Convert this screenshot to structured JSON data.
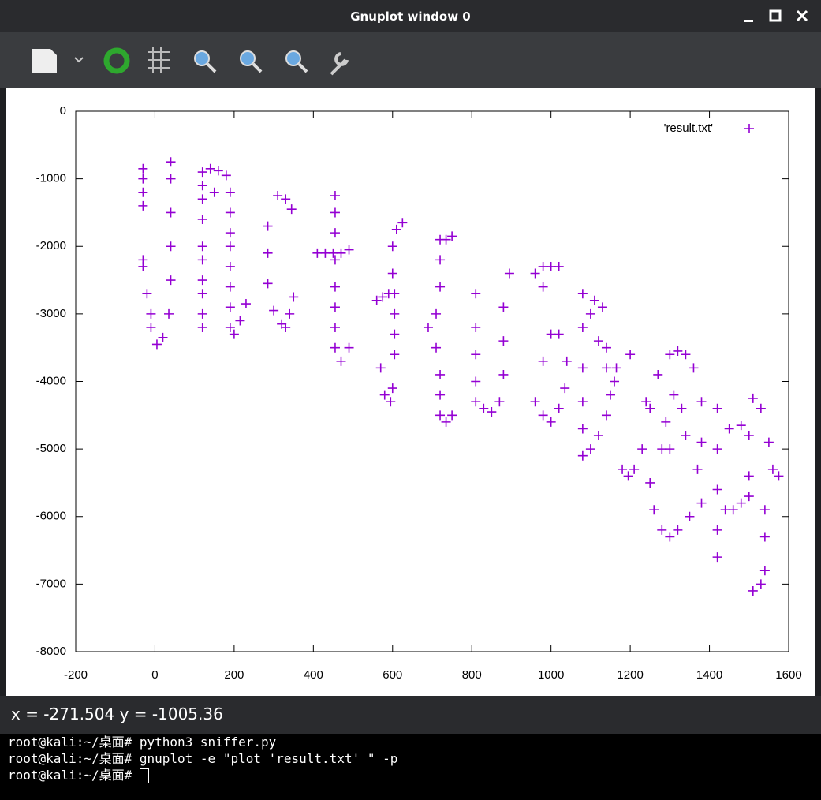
{
  "window": {
    "title": "Gnuplot window 0"
  },
  "chart_data": {
    "type": "scatter",
    "x": [
      -30,
      -30,
      -30,
      -30,
      -30,
      -30,
      -20,
      -10,
      -10,
      5,
      20,
      35,
      40,
      40,
      40,
      40,
      40,
      120,
      120,
      120,
      120,
      120,
      120,
      120,
      120,
      120,
      120,
      140,
      150,
      160,
      180,
      190,
      190,
      190,
      190,
      190,
      190,
      190,
      190,
      200,
      215,
      230,
      285,
      285,
      285,
      300,
      320,
      330,
      340,
      350,
      310,
      330,
      345,
      455,
      455,
      455,
      455,
      455,
      455,
      455,
      455,
      470,
      490,
      410,
      430,
      450,
      470,
      490,
      560,
      575,
      590,
      605,
      605,
      605,
      605,
      600,
      600,
      610,
      625,
      570,
      580,
      595,
      600,
      690,
      710,
      720,
      720,
      720,
      735,
      750,
      710,
      720,
      720,
      720,
      735,
      750,
      810,
      810,
      810,
      810,
      810,
      830,
      850,
      870,
      880,
      880,
      880,
      895,
      960,
      980,
      980,
      1000,
      1020,
      960,
      980,
      1000,
      1020,
      1035,
      1040,
      1020,
      1000,
      980,
      1080,
      1080,
      1080,
      1080,
      1080,
      1080,
      1100,
      1120,
      1140,
      1150,
      1140,
      1120,
      1100,
      1110,
      1130,
      1140,
      1165,
      1160,
      1180,
      1195,
      1210,
      1230,
      1240,
      1200,
      1250,
      1270,
      1300,
      1320,
      1340,
      1360,
      1380,
      1380,
      1370,
      1250,
      1260,
      1280,
      1300,
      1320,
      1350,
      1380,
      1280,
      1290,
      1310,
      1330,
      1340,
      1300,
      1420,
      1420,
      1420,
      1420,
      1420,
      1440,
      1460,
      1480,
      1450,
      1480,
      1500,
      1500,
      1500,
      1510,
      1530,
      1550,
      1560,
      1575,
      1540,
      1540,
      1540,
      1530,
      1510
    ],
    "series": [
      {
        "name": "'result.txt'",
        "color": "#9400d3",
        "values": [
          -850,
          -1000,
          -1200,
          -1400,
          -2200,
          -2300,
          -2700,
          -3000,
          -3200,
          -3450,
          -3350,
          -3000,
          -2500,
          -2000,
          -1500,
          -1000,
          -750,
          -900,
          -1100,
          -1300,
          -1600,
          -2000,
          -2200,
          -2500,
          -2700,
          -3000,
          -3200,
          -850,
          -1200,
          -880,
          -950,
          -1200,
          -1500,
          -1800,
          -2000,
          -2300,
          -2600,
          -2900,
          -3200,
          -3300,
          -3100,
          -2850,
          -1700,
          -2100,
          -2550,
          -2950,
          -3150,
          -3200,
          -3000,
          -2750,
          -1250,
          -1300,
          -1450,
          -1250,
          -1500,
          -1800,
          -2200,
          -2600,
          -2900,
          -3200,
          -3500,
          -3700,
          -3500,
          -2100,
          -2100,
          -2100,
          -2100,
          -2050,
          -2800,
          -2750,
          -2700,
          -2700,
          -3000,
          -3300,
          -3600,
          -2400,
          -2000,
          -1750,
          -1650,
          -3800,
          -4200,
          -4300,
          -4100,
          -3200,
          -3000,
          -2600,
          -2200,
          -1900,
          -1900,
          -1850,
          -3500,
          -3900,
          -4200,
          -4500,
          -4600,
          -4500,
          -2700,
          -3200,
          -3600,
          -4000,
          -4300,
          -4400,
          -4450,
          -4300,
          -3900,
          -3400,
          -2900,
          -2400,
          -2400,
          -2300,
          -2600,
          -2300,
          -2300,
          -4300,
          -4500,
          -4600,
          -4400,
          -4100,
          -3700,
          -3300,
          -3300,
          -3700,
          -2700,
          -3200,
          -3800,
          -4300,
          -4700,
          -5100,
          -5000,
          -4800,
          -4500,
          -4200,
          -3800,
          -3400,
          -3000,
          -2800,
          -2900,
          -3500,
          -3800,
          -4000,
          -5300,
          -5400,
          -5300,
          -5000,
          -4300,
          -3600,
          -4400,
          -3900,
          -3600,
          -3550,
          -3600,
          -3800,
          -4300,
          -4900,
          -5300,
          -5500,
          -5900,
          -6200,
          -6300,
          -6200,
          -6000,
          -5800,
          -5000,
          -4600,
          -4200,
          -4400,
          -4800,
          -5000,
          -4400,
          -5000,
          -5600,
          -6200,
          -6600,
          -5900,
          -5900,
          -5800,
          -4700,
          -4650,
          -4800,
          -5400,
          -5700,
          -4250,
          -4400,
          -4900,
          -5300,
          -5400,
          -5900,
          -6300,
          -6800,
          -7000,
          -7100
        ]
      }
    ],
    "xlim": [
      -200,
      1600
    ],
    "xticks": [
      -200,
      0,
      200,
      400,
      600,
      800,
      1000,
      1200,
      1400,
      1600
    ],
    "ylim": [
      -8000,
      0
    ],
    "yticks": [
      0,
      -1000,
      -2000,
      -3000,
      -4000,
      -5000,
      -6000,
      -7000,
      -8000
    ],
    "legend": "top right"
  },
  "status": "x = -271.504 y = -1005.36",
  "terminal": {
    "lines": [
      "root@kali:~/桌面# python3 sniffer.py",
      "root@kali:~/桌面# gnuplot -e \"plot 'result.txt' \" -p",
      "root@kali:~/桌面# "
    ]
  }
}
